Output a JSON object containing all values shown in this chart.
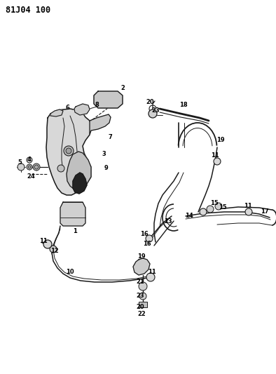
{
  "title": "81J04 100",
  "bg_color": "#ffffff",
  "line_color": "#1a1a1a",
  "label_color": "#000000",
  "fig_width": 3.94,
  "fig_height": 5.33,
  "dpi": 100
}
